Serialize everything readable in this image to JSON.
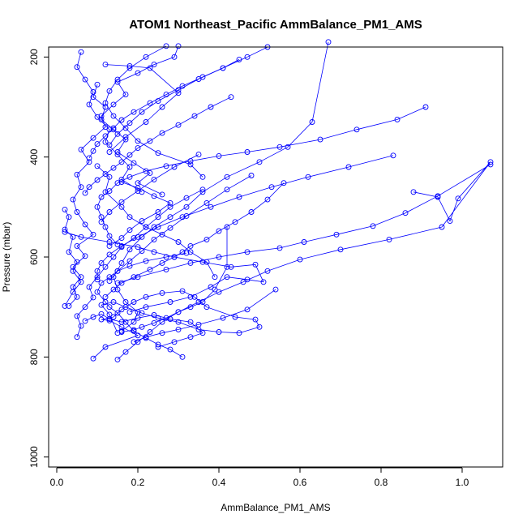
{
  "chart_data": {
    "type": "line",
    "title": "ATOM1 Northeast_Pacific AmmBalance_PM1_AMS",
    "xlabel": "AmmBalance_PM1_AMS",
    "ylabel": "Pressure (mbar)",
    "xlim": [
      -0.02,
      1.1
    ],
    "ylim": [
      1020,
      180
    ],
    "y_reversed": true,
    "x_ticks": [
      0.0,
      0.2,
      0.4,
      0.6,
      0.8,
      1.0
    ],
    "x_tick_labels": [
      "0.0",
      "0.2",
      "0.4",
      "0.6",
      "0.8",
      "1.0"
    ],
    "y_ticks": [
      200,
      400,
      600,
      800,
      1000
    ],
    "y_tick_labels": [
      "200",
      "400",
      "600",
      "800",
      "1000"
    ],
    "grid": false,
    "marker": "open-circle",
    "series_color": "#0000ff",
    "series": [
      {
        "x": [
          0.09,
          0.12,
          0.2,
          0.16,
          0.13,
          0.11,
          0.14,
          0.16,
          0.19,
          0.22,
          0.26,
          0.31,
          0.34,
          0.37,
          0.44,
          0.49,
          0.5,
          0.45,
          0.4,
          0.35,
          0.3,
          0.25,
          0.21,
          0.17,
          0.14,
          0.11,
          0.13,
          0.15
        ],
        "y": [
          803,
          780,
          757,
          740,
          727,
          725,
          720,
          705,
          690,
          680,
          672,
          668,
          680,
          700,
          720,
          725,
          740,
          752,
          750,
          745,
          730,
          722,
          712,
          700,
          690,
          696,
          715,
          752
        ]
      },
      {
        "x": [
          0.03,
          0.05,
          0.04,
          0.06,
          0.04,
          0.07,
          0.05,
          0.09,
          0.07,
          0.05,
          0.04,
          0.06,
          0.05,
          0.08,
          0.06,
          0.09,
          0.12,
          0.11,
          0.14,
          0.17,
          0.15,
          0.2,
          0.24,
          0.29,
          0.3
        ],
        "y": [
          698,
          680,
          660,
          640,
          620,
          598,
          578,
          555,
          535,
          510,
          485,
          460,
          435,
          410,
          385,
          362,
          340,
          318,
          295,
          275,
          250,
          232,
          215,
          200,
          178
        ]
      },
      {
        "x": [
          0.05,
          0.06,
          0.05,
          0.07,
          0.09,
          0.08,
          0.1,
          0.12,
          0.14,
          0.16,
          0.19,
          0.22,
          0.25,
          0.28,
          0.32,
          0.36
        ],
        "y": [
          760,
          738,
          718,
          700,
          681,
          660,
          640,
          620,
          600,
          580,
          562,
          540,
          520,
          500,
          482,
          465
        ]
      },
      {
        "x": [
          0.15,
          0.17,
          0.2,
          0.23,
          0.26,
          0.3,
          0.35,
          0.4,
          0.46,
          0.52,
          0.6,
          0.7,
          0.82,
          0.95,
          1.07,
          0.99,
          0.97,
          0.94,
          0.88
        ],
        "y": [
          805,
          790,
          770,
          750,
          730,
          710,
          690,
          670,
          650,
          628,
          605,
          585,
          565,
          540,
          410,
          483,
          528,
          480,
          470
        ]
      },
      {
        "x": [
          0.02,
          0.06,
          0.13,
          0.2,
          0.24,
          0.29,
          0.36,
          0.43,
          0.49,
          0.51,
          0.47,
          0.42,
          0.38,
          0.33,
          0.28,
          0.22,
          0.18
        ],
        "y": [
          550,
          560,
          570,
          580,
          590,
          600,
          610,
          620,
          615,
          650,
          645,
          640,
          660,
          680,
          690,
          700,
          710
        ]
      },
      {
        "x": [
          0.15,
          0.2,
          0.27,
          0.33,
          0.4,
          0.47,
          0.55,
          0.61,
          0.69,
          0.78,
          0.86,
          0.94,
          1.07
        ],
        "y": [
          652,
          640,
          625,
          612,
          600,
          590,
          582,
          570,
          555,
          538,
          512,
          478,
          415
        ]
      },
      {
        "x": [
          0.1,
          0.13,
          0.12,
          0.16,
          0.18,
          0.22,
          0.26,
          0.3,
          0.33,
          0.37,
          0.39
        ],
        "y": [
          418,
          440,
          470,
          500,
          520,
          540,
          555,
          570,
          590,
          610,
          640
        ]
      },
      {
        "x": [
          0.16,
          0.19,
          0.2,
          0.17,
          0.15,
          0.14,
          0.16,
          0.18,
          0.21,
          0.24,
          0.28,
          0.32,
          0.36,
          0.42,
          0.5,
          0.57,
          0.63,
          0.67
        ],
        "y": [
          748,
          730,
          710,
          690,
          665,
          640,
          612,
          585,
          560,
          540,
          520,
          500,
          470,
          440,
          410,
          380,
          330,
          170
        ]
      },
      {
        "x": [
          0.42,
          0.42,
          0.39,
          0.36,
          0.33,
          0.3,
          0.27,
          0.24,
          0.21,
          0.19,
          0.16
        ],
        "y": [
          540,
          620,
          665,
          690,
          700,
          710,
          722,
          732,
          740,
          746,
          750
        ]
      },
      {
        "x": [
          0.56,
          0.52,
          0.48,
          0.44,
          0.4,
          0.37,
          0.33,
          0.31,
          0.29,
          0.26,
          0.23,
          0.19,
          0.16,
          0.14,
          0.12
        ],
        "y": [
          452,
          485,
          510,
          530,
          548,
          565,
          578,
          590,
          600,
          612,
          625,
          640,
          652,
          665,
          680
        ]
      },
      {
        "x": [
          0.31,
          0.28,
          0.25,
          0.22,
          0.19,
          0.17,
          0.15,
          0.13,
          0.12,
          0.1,
          0.11,
          0.13,
          0.15,
          0.18,
          0.22,
          0.27,
          0.32
        ],
        "y": [
          800,
          785,
          775,
          762,
          748,
          730,
          712,
          700,
          690,
          670,
          652,
          640,
          628,
          618,
          608,
          600,
          592
        ]
      },
      {
        "x": [
          0.91,
          0.84,
          0.74,
          0.65,
          0.55,
          0.47,
          0.4,
          0.33,
          0.27,
          0.22,
          0.18,
          0.15,
          0.13,
          0.11,
          0.1,
          0.11,
          0.12,
          0.13,
          0.15
        ],
        "y": [
          300,
          325,
          345,
          365,
          380,
          390,
          398,
          408,
          418,
          428,
          440,
          452,
          468,
          480,
          500,
          520,
          540,
          558,
          575
        ]
      },
      {
        "x": [
          0.83,
          0.72,
          0.62,
          0.53,
          0.45,
          0.38,
          0.31,
          0.25,
          0.2,
          0.16,
          0.13,
          0.11,
          0.1,
          0.1
        ],
        "y": [
          397,
          420,
          440,
          460,
          480,
          500,
          520,
          540,
          560,
          578,
          595,
          612,
          628,
          645
        ]
      },
      {
        "x": [
          0.43,
          0.38,
          0.34,
          0.3,
          0.26,
          0.23,
          0.2,
          0.18,
          0.16,
          0.14,
          0.12,
          0.1,
          0.08,
          0.07
        ],
        "y": [
          280,
          300,
          318,
          336,
          352,
          368,
          382,
          396,
          410,
          422,
          434,
          446,
          460,
          472
        ]
      },
      {
        "x": [
          0.45,
          0.41,
          0.36,
          0.31,
          0.27,
          0.23,
          0.19,
          0.16,
          0.14,
          0.12,
          0.1,
          0.09,
          0.08
        ],
        "y": [
          205,
          222,
          240,
          258,
          275,
          292,
          310,
          326,
          342,
          358,
          374,
          388,
          402
        ]
      },
      {
        "x": [
          0.06,
          0.05,
          0.07,
          0.09,
          0.08,
          0.1,
          0.13,
          0.12,
          0.15,
          0.18,
          0.16,
          0.21
        ],
        "y": [
          190,
          220,
          245,
          270,
          295,
          320,
          345,
          370,
          395,
          420,
          445,
          470
        ]
      },
      {
        "x": [
          0.1,
          0.09,
          0.12,
          0.11,
          0.14,
          0.17,
          0.15,
          0.19,
          0.23,
          0.2,
          0.26
        ],
        "y": [
          255,
          280,
          300,
          325,
          345,
          365,
          390,
          412,
          432,
          452,
          475
        ]
      },
      {
        "x": [
          0.12,
          0.18,
          0.23,
          0.3,
          0.26,
          0.22,
          0.17,
          0.13
        ],
        "y": [
          215,
          218,
          222,
          272,
          300,
          330,
          360,
          390
        ]
      },
      {
        "x": [
          0.35,
          0.29,
          0.24,
          0.2,
          0.16,
          0.13,
          0.11
        ],
        "y": [
          395,
          420,
          445,
          468,
          490,
          510,
          530
        ]
      },
      {
        "x": [
          0.27,
          0.22,
          0.18,
          0.15,
          0.13,
          0.12,
          0.14,
          0.17,
          0.2,
          0.25,
          0.33,
          0.36
        ],
        "y": [
          178,
          200,
          222,
          245,
          268,
          292,
          318,
          342,
          368,
          392,
          415,
          440
        ]
      },
      {
        "x": [
          0.16,
          0.2,
          0.24,
          0.28,
          0.25,
          0.21,
          0.18,
          0.16,
          0.13
        ],
        "y": [
          450,
          462,
          478,
          492,
          510,
          528,
          546,
          562,
          578
        ]
      },
      {
        "x": [
          0.52,
          0.47,
          0.41,
          0.35,
          0.3,
          0.25,
          0.21,
          0.18,
          0.15,
          0.13
        ],
        "y": [
          180,
          200,
          222,
          244,
          266,
          288,
          310,
          332,
          354,
          376
        ]
      },
      {
        "x": [
          0.02,
          0.03,
          0.02,
          0.04,
          0.03,
          0.05,
          0.04,
          0.06,
          0.04,
          0.02
        ],
        "y": [
          505,
          520,
          545,
          560,
          590,
          610,
          628,
          650,
          670,
          698
        ]
      },
      {
        "x": [
          0.48,
          0.42,
          0.37,
          0.32,
          0.28,
          0.24,
          0.21,
          0.18,
          0.15,
          0.13
        ],
        "y": [
          437,
          465,
          492,
          518,
          542,
          565,
          588,
          608,
          628,
          648
        ]
      },
      {
        "x": [
          0.07,
          0.09,
          0.11,
          0.13,
          0.16,
          0.2,
          0.24,
          0.28,
          0.33,
          0.36,
          0.33,
          0.29,
          0.25
        ],
        "y": [
          728,
          720,
          714,
          724,
          730,
          722,
          716,
          724,
          730,
          752,
          760,
          770,
          780
        ]
      },
      {
        "x": [
          0.19,
          0.22,
          0.26,
          0.3,
          0.35,
          0.41,
          0.47,
          0.54
        ],
        "y": [
          770,
          760,
          752,
          745,
          735,
          722,
          705,
          665
        ]
      }
    ]
  }
}
